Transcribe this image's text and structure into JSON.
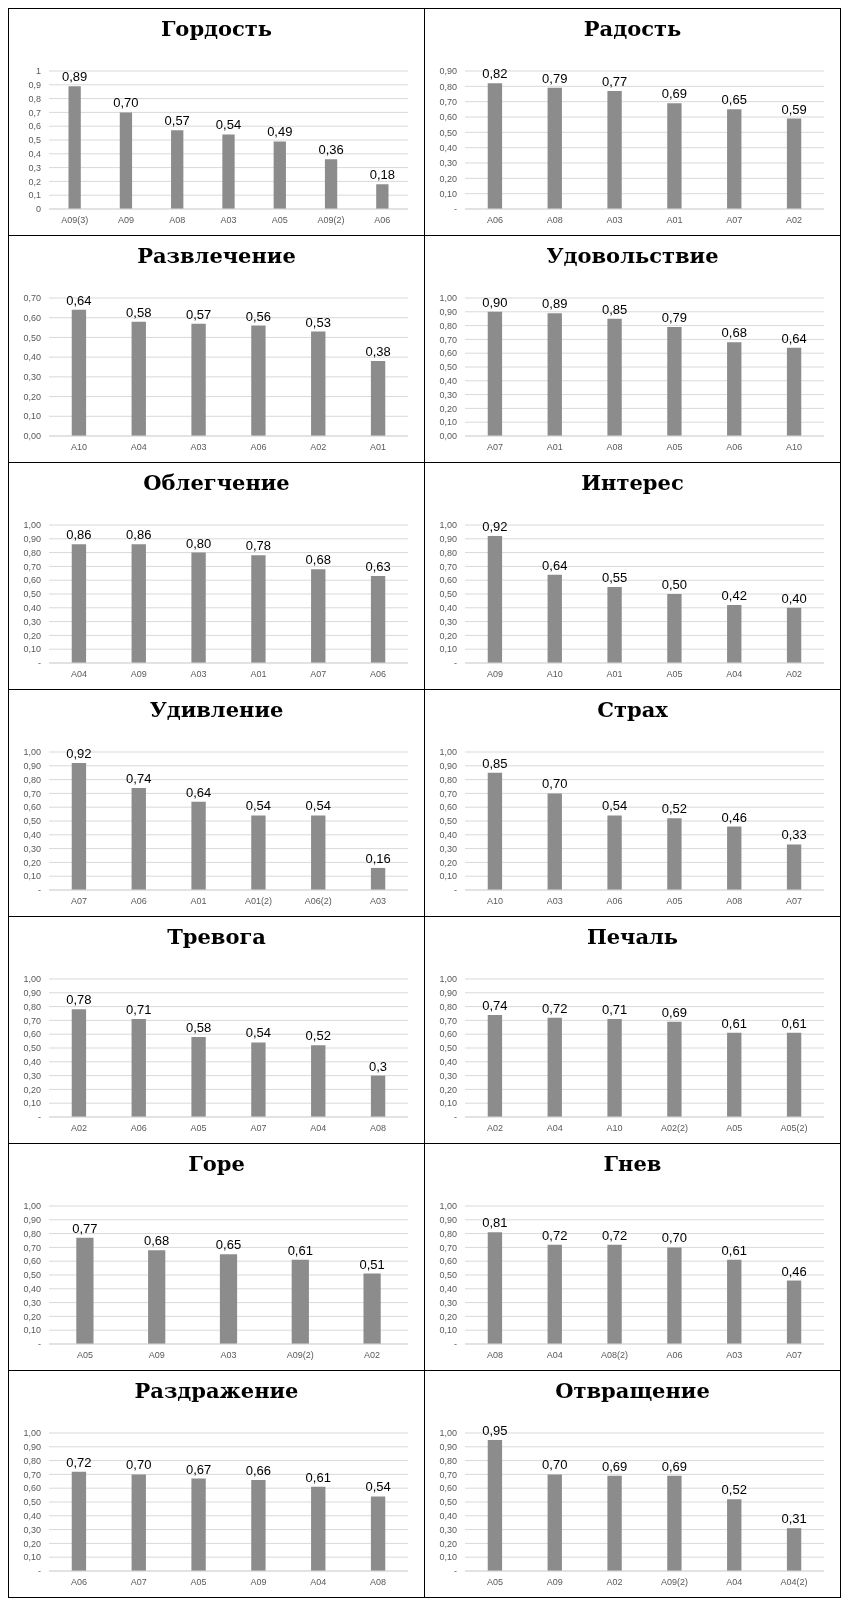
{
  "chart_data": [
    {
      "type": "bar",
      "title": "Гордость",
      "categories": [
        "A09(3)",
        "A09",
        "A08",
        "A03",
        "A05",
        "A09(2)",
        "A06"
      ],
      "values": [
        0.89,
        0.7,
        0.57,
        0.54,
        0.49,
        0.36,
        0.18
      ],
      "value_labels": [
        "0,89",
        "0,70",
        "0,57",
        "0,54",
        "0,49",
        "0,36",
        "0,18"
      ],
      "color": "#8c8c8c",
      "ylim": [
        0,
        1
      ],
      "yticks": [
        0,
        {
          "value": 0.1,
          "label": "0,1"
        },
        {
          "value": 0.2,
          "label": "0,2"
        },
        {
          "value": 0.3,
          "label": "0,3"
        },
        {
          "value": 0.4,
          "label": "0,4"
        },
        {
          "value": 0.5,
          "label": "0,5"
        },
        {
          "value": 0.6,
          "label": "0,6"
        },
        {
          "value": 0.7,
          "label": "0,7"
        },
        {
          "value": 0.8,
          "label": "0,8"
        },
        {
          "value": 0.9,
          "label": "0,9"
        },
        1
      ],
      "grid": "y"
    },
    {
      "type": "bar",
      "title": "Радость",
      "categories": [
        "A06",
        "A08",
        "A03",
        "A01",
        "A07",
        "A02"
      ],
      "values": [
        0.82,
        0.79,
        0.77,
        0.69,
        0.65,
        0.59
      ],
      "value_labels": [
        "0,82",
        "0,79",
        "0,77",
        "0,69",
        "0,65",
        "0,59"
      ],
      "color": "#8c8c8c",
      "ylim": [
        0,
        0.9
      ],
      "yticks": [
        {
          "value": 0,
          "label": "-"
        },
        {
          "value": 0.1,
          "label": "0,10"
        },
        {
          "value": 0.2,
          "label": "0,20"
        },
        {
          "value": 0.3,
          "label": "0,30"
        },
        {
          "value": 0.4,
          "label": "0,40"
        },
        {
          "value": 0.5,
          "label": "0,50"
        },
        {
          "value": 0.6,
          "label": "0,60"
        },
        {
          "value": 0.7,
          "label": "0,70"
        },
        {
          "value": 0.8,
          "label": "0,80"
        },
        {
          "value": 0.9,
          "label": "0,90"
        }
      ],
      "grid": "y"
    },
    {
      "type": "bar",
      "title": "Развлечение",
      "categories": [
        "A10",
        "A04",
        "A03",
        "A06",
        "A02",
        "A01"
      ],
      "values": [
        0.64,
        0.58,
        0.57,
        0.56,
        0.53,
        0.38
      ],
      "value_labels": [
        "0,64",
        "0,58",
        "0,57",
        "0,56",
        "0,53",
        "0,38"
      ],
      "color": "#8c8c8c",
      "ylim": [
        0,
        0.7
      ],
      "yticks": [
        {
          "value": 0,
          "label": "0,00"
        },
        {
          "value": 0.1,
          "label": "0,10"
        },
        {
          "value": 0.2,
          "label": "0,20"
        },
        {
          "value": 0.3,
          "label": "0,30"
        },
        {
          "value": 0.4,
          "label": "0,40"
        },
        {
          "value": 0.5,
          "label": "0,50"
        },
        {
          "value": 0.6,
          "label": "0,60"
        },
        {
          "value": 0.7,
          "label": "0,70"
        }
      ],
      "grid": "y"
    },
    {
      "type": "bar",
      "title": "Удовольствие",
      "categories": [
        "A07",
        "A01",
        "A08",
        "A05",
        "A06",
        "A10"
      ],
      "values": [
        0.9,
        0.89,
        0.85,
        0.79,
        0.68,
        0.64
      ],
      "value_labels": [
        "0,90",
        "0,89",
        "0,85",
        "0,79",
        "0,68",
        "0,64"
      ],
      "color": "#8c8c8c",
      "ylim": [
        0,
        1
      ],
      "yticks": [
        {
          "value": 0,
          "label": "0,00"
        },
        {
          "value": 0.1,
          "label": "0,10"
        },
        {
          "value": 0.2,
          "label": "0,20"
        },
        {
          "value": 0.3,
          "label": "0,30"
        },
        {
          "value": 0.4,
          "label": "0,40"
        },
        {
          "value": 0.5,
          "label": "0,50"
        },
        {
          "value": 0.6,
          "label": "0,60"
        },
        {
          "value": 0.7,
          "label": "0,70"
        },
        {
          "value": 0.8,
          "label": "0,80"
        },
        {
          "value": 0.9,
          "label": "0,90"
        },
        {
          "value": 1,
          "label": "1,00"
        }
      ],
      "grid": "y"
    },
    {
      "type": "bar",
      "title": "Облегчение",
      "categories": [
        "A04",
        "A09",
        "A03",
        "A01",
        "A07",
        "A06"
      ],
      "values": [
        0.86,
        0.86,
        0.8,
        0.78,
        0.68,
        0.63
      ],
      "value_labels": [
        "0,86",
        "0,86",
        "0,80",
        "0,78",
        "0,68",
        "0,63"
      ],
      "color": "#8c8c8c",
      "ylim": [
        0,
        1
      ],
      "yticks": [
        {
          "value": 0,
          "label": "-"
        },
        {
          "value": 0.1,
          "label": "0,10"
        },
        {
          "value": 0.2,
          "label": "0,20"
        },
        {
          "value": 0.3,
          "label": "0,30"
        },
        {
          "value": 0.4,
          "label": "0,40"
        },
        {
          "value": 0.5,
          "label": "0,50"
        },
        {
          "value": 0.6,
          "label": "0,60"
        },
        {
          "value": 0.7,
          "label": "0,70"
        },
        {
          "value": 0.8,
          "label": "0,80"
        },
        {
          "value": 0.9,
          "label": "0,90"
        },
        {
          "value": 1,
          "label": "1,00"
        }
      ],
      "grid": "y"
    },
    {
      "type": "bar",
      "title": "Интерес",
      "categories": [
        "A09",
        "A10",
        "A01",
        "A05",
        "A04",
        "A02"
      ],
      "values": [
        0.92,
        0.64,
        0.55,
        0.5,
        0.42,
        0.4
      ],
      "value_labels": [
        "0,92",
        "0,64",
        "0,55",
        "0,50",
        "0,42",
        "0,40"
      ],
      "color": "#8c8c8c",
      "ylim": [
        0,
        1
      ],
      "yticks": [
        {
          "value": 0,
          "label": "-"
        },
        {
          "value": 0.1,
          "label": "0,10"
        },
        {
          "value": 0.2,
          "label": "0,20"
        },
        {
          "value": 0.3,
          "label": "0,30"
        },
        {
          "value": 0.4,
          "label": "0,40"
        },
        {
          "value": 0.5,
          "label": "0,50"
        },
        {
          "value": 0.6,
          "label": "0,60"
        },
        {
          "value": 0.7,
          "label": "0,70"
        },
        {
          "value": 0.8,
          "label": "0,80"
        },
        {
          "value": 0.9,
          "label": "0,90"
        },
        {
          "value": 1,
          "label": "1,00"
        }
      ],
      "grid": "y"
    },
    {
      "type": "bar",
      "title": "Удивление",
      "categories": [
        "A07",
        "A06",
        "A01",
        "A01(2)",
        "A06(2)",
        "A03"
      ],
      "values": [
        0.92,
        0.74,
        0.64,
        0.54,
        0.54,
        0.16
      ],
      "value_labels": [
        "0,92",
        "0,74",
        "0,64",
        "0,54",
        "0,54",
        "0,16"
      ],
      "color": "#8c8c8c",
      "ylim": [
        0,
        1
      ],
      "yticks": [
        {
          "value": 0,
          "label": "-"
        },
        {
          "value": 0.1,
          "label": "0,10"
        },
        {
          "value": 0.2,
          "label": "0,20"
        },
        {
          "value": 0.3,
          "label": "0,30"
        },
        {
          "value": 0.4,
          "label": "0,40"
        },
        {
          "value": 0.5,
          "label": "0,50"
        },
        {
          "value": 0.6,
          "label": "0,60"
        },
        {
          "value": 0.7,
          "label": "0,70"
        },
        {
          "value": 0.8,
          "label": "0,80"
        },
        {
          "value": 0.9,
          "label": "0,90"
        },
        {
          "value": 1,
          "label": "1,00"
        }
      ],
      "grid": "y"
    },
    {
      "type": "bar",
      "title": "Страх",
      "categories": [
        "A10",
        "A03",
        "A06",
        "A05",
        "A08",
        "A07"
      ],
      "values": [
        0.85,
        0.7,
        0.54,
        0.52,
        0.46,
        0.33
      ],
      "value_labels": [
        "0,85",
        "0,70",
        "0,54",
        "0,52",
        "0,46",
        "0,33"
      ],
      "color": "#8c8c8c",
      "ylim": [
        0,
        1
      ],
      "yticks": [
        {
          "value": 0,
          "label": "-"
        },
        {
          "value": 0.1,
          "label": "0,10"
        },
        {
          "value": 0.2,
          "label": "0,20"
        },
        {
          "value": 0.3,
          "label": "0,30"
        },
        {
          "value": 0.4,
          "label": "0,40"
        },
        {
          "value": 0.5,
          "label": "0,50"
        },
        {
          "value": 0.6,
          "label": "0,60"
        },
        {
          "value": 0.7,
          "label": "0,70"
        },
        {
          "value": 0.8,
          "label": "0,80"
        },
        {
          "value": 0.9,
          "label": "0,90"
        },
        {
          "value": 1,
          "label": "1,00"
        }
      ],
      "grid": "y"
    },
    {
      "type": "bar",
      "title": "Тревога",
      "categories": [
        "A02",
        "A06",
        "A05",
        "A07",
        "A04",
        "A08"
      ],
      "values": [
        0.78,
        0.71,
        0.58,
        0.54,
        0.52,
        0.3
      ],
      "value_labels": [
        "0,78",
        "0,71",
        "0,58",
        "0,54",
        "0,52",
        "0,3"
      ],
      "color": "#8c8c8c",
      "ylim": [
        0,
        1
      ],
      "yticks": [
        {
          "value": 0,
          "label": "-"
        },
        {
          "value": 0.1,
          "label": "0,10"
        },
        {
          "value": 0.2,
          "label": "0,20"
        },
        {
          "value": 0.3,
          "label": "0,30"
        },
        {
          "value": 0.4,
          "label": "0,40"
        },
        {
          "value": 0.5,
          "label": "0,50"
        },
        {
          "value": 0.6,
          "label": "0,60"
        },
        {
          "value": 0.7,
          "label": "0,70"
        },
        {
          "value": 0.8,
          "label": "0,80"
        },
        {
          "value": 0.9,
          "label": "0,90"
        },
        {
          "value": 1,
          "label": "1,00"
        }
      ],
      "grid": "y"
    },
    {
      "type": "bar",
      "title": "Печаль",
      "categories": [
        "A02",
        "A04",
        "A10",
        "A02(2)",
        "A05",
        "A05(2)"
      ],
      "values": [
        0.74,
        0.72,
        0.71,
        0.69,
        0.61,
        0.61
      ],
      "value_labels": [
        "0,74",
        "0,72",
        "0,71",
        "0,69",
        "0,61",
        "0,61"
      ],
      "color": "#8c8c8c",
      "ylim": [
        0,
        1
      ],
      "yticks": [
        {
          "value": 0,
          "label": "-"
        },
        {
          "value": 0.1,
          "label": "0,10"
        },
        {
          "value": 0.2,
          "label": "0,20"
        },
        {
          "value": 0.3,
          "label": "0,30"
        },
        {
          "value": 0.4,
          "label": "0,40"
        },
        {
          "value": 0.5,
          "label": "0,50"
        },
        {
          "value": 0.6,
          "label": "0,60"
        },
        {
          "value": 0.7,
          "label": "0,70"
        },
        {
          "value": 0.8,
          "label": "0,80"
        },
        {
          "value": 0.9,
          "label": "0,90"
        },
        {
          "value": 1,
          "label": "1,00"
        }
      ],
      "grid": "y"
    },
    {
      "type": "bar",
      "title": "Горе",
      "categories": [
        "A05",
        "A09",
        "A03",
        "A09(2)",
        "A02"
      ],
      "values": [
        0.77,
        0.68,
        0.65,
        0.61,
        0.51
      ],
      "value_labels": [
        "0,77",
        "0,68",
        "0,65",
        "0,61",
        "0,51"
      ],
      "color": "#8c8c8c",
      "ylim": [
        0,
        1
      ],
      "yticks": [
        {
          "value": 0,
          "label": "-"
        },
        {
          "value": 0.1,
          "label": "0,10"
        },
        {
          "value": 0.2,
          "label": "0,20"
        },
        {
          "value": 0.3,
          "label": "0,30"
        },
        {
          "value": 0.4,
          "label": "0,40"
        },
        {
          "value": 0.5,
          "label": "0,50"
        },
        {
          "value": 0.6,
          "label": "0,60"
        },
        {
          "value": 0.7,
          "label": "0,70"
        },
        {
          "value": 0.8,
          "label": "0,80"
        },
        {
          "value": 0.9,
          "label": "0,90"
        },
        {
          "value": 1,
          "label": "1,00"
        }
      ],
      "grid": "y"
    },
    {
      "type": "bar",
      "title": "Гнев",
      "categories": [
        "A08",
        "A04",
        "A08(2)",
        "A06",
        "A03",
        "A07"
      ],
      "values": [
        0.81,
        0.72,
        0.72,
        0.7,
        0.61,
        0.46
      ],
      "value_labels": [
        "0,81",
        "0,72",
        "0,72",
        "0,70",
        "0,61",
        "0,46"
      ],
      "color": "#8c8c8c",
      "ylim": [
        0,
        1
      ],
      "yticks": [
        {
          "value": 0,
          "label": "-"
        },
        {
          "value": 0.1,
          "label": "0,10"
        },
        {
          "value": 0.2,
          "label": "0,20"
        },
        {
          "value": 0.3,
          "label": "0,30"
        },
        {
          "value": 0.4,
          "label": "0,40"
        },
        {
          "value": 0.5,
          "label": "0,50"
        },
        {
          "value": 0.6,
          "label": "0,60"
        },
        {
          "value": 0.7,
          "label": "0,70"
        },
        {
          "value": 0.8,
          "label": "0,80"
        },
        {
          "value": 0.9,
          "label": "0,90"
        },
        {
          "value": 1,
          "label": "1,00"
        }
      ],
      "grid": "y"
    },
    {
      "type": "bar",
      "title": "Раздражение",
      "categories": [
        "A06",
        "A07",
        "A05",
        "A09",
        "A04",
        "A08"
      ],
      "values": [
        0.72,
        0.7,
        0.67,
        0.66,
        0.61,
        0.54
      ],
      "value_labels": [
        "0,72",
        "0,70",
        "0,67",
        "0,66",
        "0,61",
        "0,54"
      ],
      "color": "#8c8c8c",
      "ylim": [
        0,
        1
      ],
      "yticks": [
        {
          "value": 0,
          "label": "-"
        },
        {
          "value": 0.1,
          "label": "0,10"
        },
        {
          "value": 0.2,
          "label": "0,20"
        },
        {
          "value": 0.3,
          "label": "0,30"
        },
        {
          "value": 0.4,
          "label": "0,40"
        },
        {
          "value": 0.5,
          "label": "0,50"
        },
        {
          "value": 0.6,
          "label": "0,60"
        },
        {
          "value": 0.7,
          "label": "0,70"
        },
        {
          "value": 0.8,
          "label": "0,80"
        },
        {
          "value": 0.9,
          "label": "0,90"
        },
        {
          "value": 1,
          "label": "1,00"
        }
      ],
      "grid": "y"
    },
    {
      "type": "bar",
      "title": "Отвращение",
      "categories": [
        "A05",
        "A09",
        "A02",
        "A09(2)",
        "A04",
        "A04(2)"
      ],
      "values": [
        0.95,
        0.7,
        0.69,
        0.69,
        0.52,
        0.31
      ],
      "value_labels": [
        "0,95",
        "0,70",
        "0,69",
        "0,69",
        "0,52",
        "0,31"
      ],
      "color": "#8c8c8c",
      "ylim": [
        0,
        1
      ],
      "yticks": [
        {
          "value": 0,
          "label": "-"
        },
        {
          "value": 0.1,
          "label": "0,10"
        },
        {
          "value": 0.2,
          "label": "0,20"
        },
        {
          "value": 0.3,
          "label": "0,30"
        },
        {
          "value": 0.4,
          "label": "0,40"
        },
        {
          "value": 0.5,
          "label": "0,50"
        },
        {
          "value": 0.6,
          "label": "0,60"
        },
        {
          "value": 0.7,
          "label": "0,70"
        },
        {
          "value": 0.8,
          "label": "0,80"
        },
        {
          "value": 0.9,
          "label": "0,90"
        },
        {
          "value": 1,
          "label": "1,00"
        }
      ],
      "grid": "y"
    }
  ]
}
